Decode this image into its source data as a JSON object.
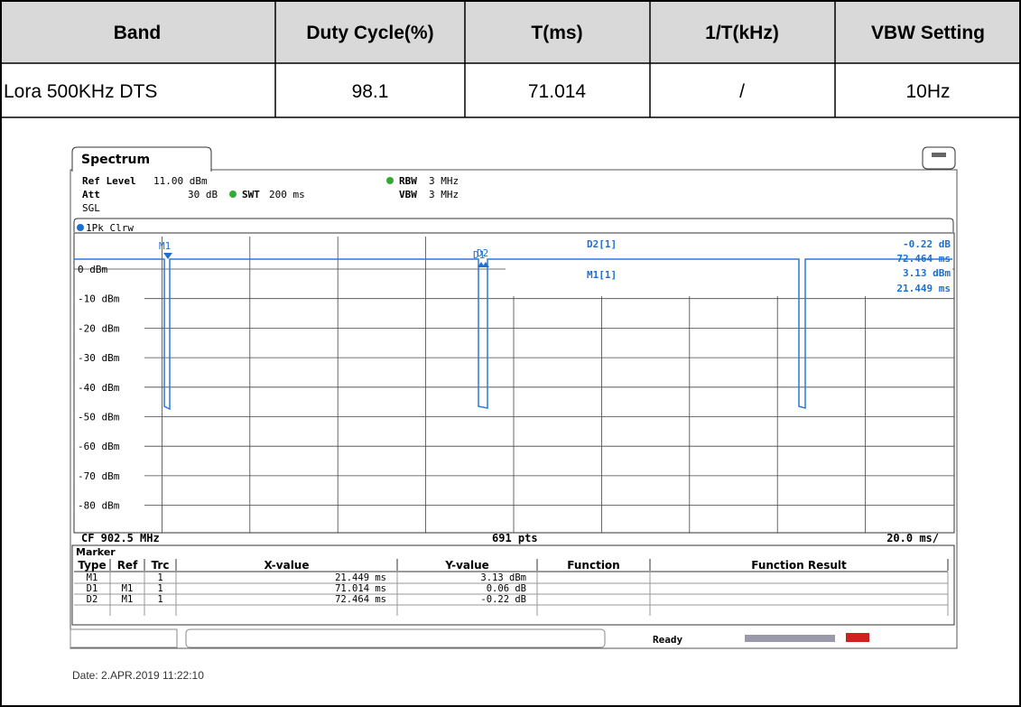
{
  "table": {
    "headers": [
      "Band",
      "Duty Cycle(%)",
      "T(ms)",
      "1/T(kHz)",
      "VBW Setting"
    ],
    "rows": [
      [
        "Lora 500KHz DTS",
        "98.1",
        "71.014",
        "/",
        "10Hz"
      ]
    ]
  },
  "screenshot": {
    "tab": "Spectrum",
    "settings": {
      "ref_level_label": "Ref Level",
      "ref_level": "11.00 dBm",
      "att_label": "Att",
      "att": "30 dB",
      "swt_label": "SWT",
      "swt": "200 ms",
      "rbw_label": "RBW",
      "rbw": "3 MHz",
      "vbw_label": "VBW",
      "vbw": "3 MHz",
      "mode": "SGL"
    },
    "trace_label": "1Pk Clrw",
    "y_labels": [
      "0 dBm",
      "-10 dBm",
      "-20 dBm",
      "-30 dBm",
      "-40 dBm",
      "-50 dBm",
      "-60 dBm",
      "-70 dBm",
      "-80 dBm"
    ],
    "markers": [
      "M1",
      "D1",
      "D2"
    ],
    "readouts": [
      {
        "label": "D2[1]",
        "lines": [
          "-0.22 dB",
          "72.464 ms"
        ]
      },
      {
        "label": "M1[1]",
        "lines": [
          "3.13 dBm",
          "21.449 ms"
        ]
      }
    ],
    "footer": {
      "cf": "CF 902.5 MHz",
      "pts": "691 pts",
      "span": "20.0 ms/"
    },
    "marker_table": {
      "title": "Marker",
      "headers": [
        "Type",
        "Ref",
        "Trc",
        "X-value",
        "Y-value",
        "Function",
        "Function Result"
      ],
      "rows": [
        {
          "type": "M1",
          "trc": "1",
          "x": "21.449 ms",
          "y": "3.13 dBm"
        },
        {
          "type": "D1",
          "ref": "M1",
          "trc": "1",
          "x": "71.014 ms",
          "y": "0.06 dB"
        },
        {
          "type": "D2",
          "ref": "M1",
          "trc": "1",
          "x": "72.464 ms",
          "y": "-0.22 dB"
        }
      ]
    },
    "status": "Ready"
  },
  "date": "Date: 2.APR.2019 11:22:10"
}
